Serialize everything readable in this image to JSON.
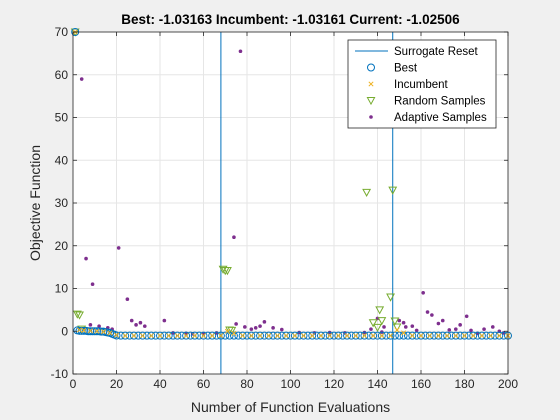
{
  "chart_data": {
    "type": "scatter",
    "title": "Best: -1.03163 Incumbent: -1.03161 Current: -1.02506",
    "xlabel": "Number of Function Evaluations",
    "ylabel": "Objective Function",
    "xlim": [
      0,
      200
    ],
    "ylim": [
      -10,
      70
    ],
    "xticks": [
      "0",
      "20",
      "40",
      "60",
      "80",
      "100",
      "120",
      "140",
      "160",
      "180",
      "200"
    ],
    "yticks": [
      "-10",
      "0",
      "10",
      "20",
      "30",
      "40",
      "50",
      "60",
      "70"
    ],
    "grid": true,
    "legend_position": "top-right",
    "colors": {
      "reset": "#0072bd",
      "best": "#0072bd",
      "incumbent": "#edb120",
      "random": "#77ac30",
      "adaptive": "#7e2f8e"
    },
    "legend": [
      {
        "label": "Surrogate Reset",
        "marker": "line"
      },
      {
        "label": "Best",
        "marker": "circle"
      },
      {
        "label": "Incumbent",
        "marker": "x"
      },
      {
        "label": "Random Samples",
        "marker": "triangle"
      },
      {
        "label": "Adaptive Samples",
        "marker": "dot"
      }
    ],
    "surrogate_resets": [
      68,
      147
    ],
    "series": [
      {
        "name": "Best",
        "marker": "circle",
        "x": [
          1,
          2,
          3,
          4,
          5,
          6,
          7,
          8,
          9,
          10,
          11,
          12,
          13,
          14,
          15,
          16,
          17,
          18,
          19,
          20,
          22,
          24,
          26,
          28,
          30,
          32,
          34,
          36,
          38,
          40,
          42,
          44,
          46,
          48,
          50,
          52,
          54,
          56,
          58,
          60,
          62,
          64,
          66,
          68,
          70,
          72,
          74,
          76,
          78,
          80,
          82,
          84,
          86,
          88,
          90,
          92,
          94,
          96,
          98,
          100,
          102,
          104,
          106,
          108,
          110,
          112,
          114,
          116,
          118,
          120,
          122,
          124,
          126,
          128,
          130,
          132,
          134,
          136,
          138,
          140,
          142,
          144,
          146,
          148,
          150,
          152,
          154,
          156,
          158,
          160,
          162,
          164,
          166,
          168,
          170,
          172,
          174,
          176,
          178,
          180,
          182,
          184,
          186,
          188,
          190,
          192,
          194,
          196,
          198,
          200
        ],
        "y": [
          70,
          0.2,
          0.1,
          0.1,
          0.1,
          0.1,
          0,
          0,
          0,
          0,
          0,
          0,
          -0.1,
          -0.1,
          -0.2,
          -0.3,
          -0.4,
          -0.6,
          -0.8,
          -1.0,
          -1.03,
          -1.03,
          -1.03,
          -1.03,
          -1.03,
          -1.03,
          -1.03,
          -1.03,
          -1.03,
          -1.03,
          -1.03,
          -1.03,
          -1.03,
          -1.03,
          -1.03,
          -1.03,
          -1.03,
          -1.03,
          -1.03,
          -1.03,
          -1.03,
          -1.03,
          -1.03,
          -1.03,
          -1.03,
          -1.03,
          -1.03,
          -1.03,
          -1.03,
          -1.03,
          -1.03,
          -1.03,
          -1.03,
          -1.03,
          -1.03,
          -1.03,
          -1.03,
          -1.03,
          -1.03,
          -1.03,
          -1.03,
          -1.03,
          -1.03,
          -1.03,
          -1.03,
          -1.03,
          -1.03,
          -1.03,
          -1.03,
          -1.03,
          -1.03,
          -1.03,
          -1.03,
          -1.03,
          -1.03,
          -1.03,
          -1.03,
          -1.03,
          -1.03,
          -1.03,
          -1.03,
          -1.03,
          -1.03,
          -1.03,
          -1.03,
          -1.03,
          -1.03,
          -1.03,
          -1.03,
          -1.03,
          -1.03,
          -1.03,
          -1.03,
          -1.03,
          -1.03,
          -1.03,
          -1.03,
          -1.03,
          -1.03,
          -1.03,
          -1.03,
          -1.03,
          -1.03,
          -1.03,
          -1.03,
          -1.03,
          -1.03,
          -1.03,
          -1.03,
          -1.03
        ]
      },
      {
        "name": "Incumbent",
        "marker": "x",
        "x": [
          1,
          3,
          5,
          8,
          11,
          14,
          17,
          20,
          24,
          28,
          32,
          36,
          40,
          44,
          48,
          52,
          56,
          60,
          64,
          68,
          71,
          74,
          78,
          82,
          86,
          90,
          94,
          98,
          102,
          106,
          110,
          114,
          118,
          122,
          126,
          130,
          134,
          138,
          142,
          146,
          149,
          152,
          156,
          160,
          164,
          168,
          172,
          176,
          180,
          184,
          188,
          192,
          196,
          200
        ],
        "y": [
          70,
          0.3,
          0.2,
          0.1,
          0,
          -0.1,
          -0.4,
          -0.9,
          -1.03,
          -1.03,
          -1.03,
          -1.03,
          -1.03,
          -1.03,
          -1.03,
          -1.03,
          -1.03,
          -1.03,
          -1.03,
          -1.03,
          0,
          -0.5,
          -1.0,
          -1.03,
          -1.03,
          -1.03,
          -1.03,
          -1.03,
          -1.03,
          -1.03,
          -1.03,
          -1.03,
          -1.03,
          -1.03,
          -1.03,
          -1.03,
          -1.03,
          -1.03,
          -1.03,
          -1.03,
          0.3,
          -0.4,
          -1.0,
          -1.03,
          -1.03,
          -1.03,
          -1.03,
          -1.03,
          -1.03,
          -1.03,
          -1.03,
          -1.03,
          -1.03,
          -1.03
        ]
      },
      {
        "name": "Random Samples",
        "marker": "triangle",
        "x": [
          1,
          2,
          3,
          4,
          69,
          70,
          71,
          72,
          73,
          135,
          138,
          140,
          141,
          142,
          146,
          147,
          148,
          149
        ],
        "y": [
          70,
          4.0,
          3.8,
          0.5,
          14.5,
          14.2,
          14.2,
          0.3,
          0.2,
          32.5,
          2.0,
          0.9,
          5.0,
          2.5,
          8.0,
          33.0,
          2.4,
          1.0
        ]
      },
      {
        "name": "Adaptive Samples",
        "marker": "dot",
        "x": [
          4,
          6,
          9,
          8,
          12,
          16,
          18,
          21,
          25,
          27,
          29,
          31,
          33,
          42,
          46,
          52,
          55,
          60,
          66,
          74,
          75,
          77,
          79,
          82,
          84,
          86,
          88,
          92,
          96,
          104,
          111,
          118,
          125,
          134,
          137,
          140,
          142,
          143,
          150,
          152,
          153,
          156,
          158,
          161,
          163,
          165,
          168,
          170,
          173,
          176,
          178,
          181,
          183,
          186,
          189,
          193,
          196,
          198
        ],
        "y": [
          59,
          17,
          11,
          1.5,
          1.2,
          0.8,
          0.5,
          19.5,
          7.5,
          2.5,
          1.5,
          2.0,
          1.2,
          2.5,
          -0.4,
          -0.5,
          -0.6,
          -0.6,
          -0.4,
          22,
          1.7,
          65.5,
          1.0,
          0.5,
          0.8,
          1.2,
          2.2,
          0.8,
          0.4,
          -0.3,
          -0.4,
          -0.3,
          -0.4,
          -0.3,
          0.5,
          3.0,
          -0.2,
          1.0,
          2.5,
          2.0,
          1.0,
          1.2,
          0.2,
          9.0,
          4.5,
          3.8,
          1.8,
          2.5,
          0.3,
          0.5,
          1.5,
          3.5,
          0.2,
          -0.5,
          0.5,
          1.0,
          0,
          -0.4
        ]
      }
    ]
  }
}
